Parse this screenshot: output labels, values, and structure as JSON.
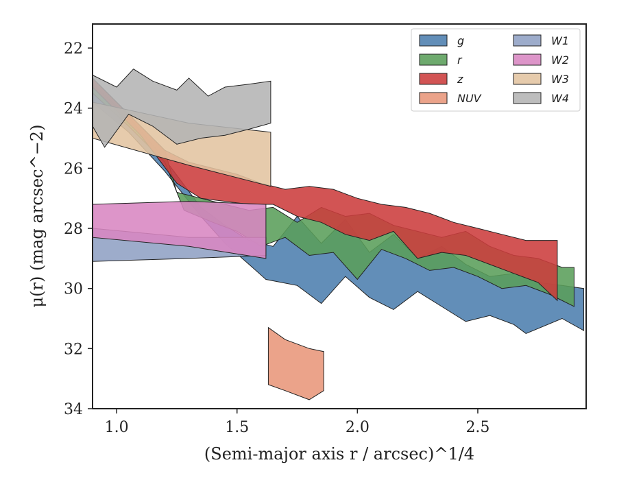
{
  "chart_data": {
    "type": "area",
    "xlabel": "(Semi-major axis r / arcsec)^1/4",
    "ylabel": "μ(r) (mag arcsec^−2)",
    "xlim": [
      0.9,
      2.95
    ],
    "ylim": [
      34,
      21.2
    ],
    "y_inverted": true,
    "x_ticks": [
      "1.0",
      "1.5",
      "2.0",
      "2.5"
    ],
    "y_ticks": [
      "22",
      "24",
      "26",
      "28",
      "30",
      "32",
      "34"
    ],
    "legend_position": "top-right",
    "legend_columns": 2,
    "series": [
      {
        "name": "g",
        "color": "#4c7eae",
        "upper": [
          [
            0.9,
            23.2
          ],
          [
            1.05,
            24.3
          ],
          [
            1.2,
            25.7
          ],
          [
            1.35,
            27.3
          ],
          [
            1.45,
            27.9
          ],
          [
            1.55,
            28.4
          ],
          [
            1.65,
            28.6
          ],
          [
            1.75,
            27.6
          ],
          [
            1.85,
            28.5
          ],
          [
            1.95,
            27.7
          ],
          [
            2.05,
            28.8
          ],
          [
            2.15,
            28.2
          ],
          [
            2.25,
            29.0
          ],
          [
            2.35,
            28.6
          ],
          [
            2.45,
            29.2
          ],
          [
            2.55,
            29.6
          ],
          [
            2.65,
            29.5
          ],
          [
            2.75,
            29.8
          ],
          [
            2.85,
            29.9
          ],
          [
            2.94,
            30.0
          ]
        ],
        "lower": [
          [
            0.9,
            23.8
          ],
          [
            1.05,
            24.8
          ],
          [
            1.2,
            26.1
          ],
          [
            1.35,
            27.6
          ],
          [
            1.45,
            28.5
          ],
          [
            1.55,
            29.2
          ],
          [
            1.62,
            29.7
          ],
          [
            1.75,
            29.9
          ],
          [
            1.85,
            30.5
          ],
          [
            1.95,
            29.6
          ],
          [
            2.05,
            30.3
          ],
          [
            2.15,
            30.7
          ],
          [
            2.25,
            30.1
          ],
          [
            2.35,
            30.6
          ],
          [
            2.45,
            31.1
          ],
          [
            2.55,
            30.9
          ],
          [
            2.65,
            31.2
          ],
          [
            2.7,
            31.5
          ],
          [
            2.85,
            31.0
          ],
          [
            2.94,
            31.4
          ]
        ]
      },
      {
        "name": "r",
        "color": "#5a9e5a",
        "upper": [
          [
            0.9,
            23.0
          ],
          [
            1.05,
            24.2
          ],
          [
            1.2,
            25.4
          ],
          [
            1.25,
            26.8
          ],
          [
            1.35,
            27.0
          ],
          [
            1.45,
            27.2
          ],
          [
            1.55,
            27.4
          ],
          [
            1.65,
            27.3
          ],
          [
            1.75,
            27.8
          ],
          [
            1.85,
            27.3
          ],
          [
            1.95,
            27.6
          ],
          [
            2.05,
            27.5
          ],
          [
            2.15,
            27.9
          ],
          [
            2.25,
            28.1
          ],
          [
            2.35,
            28.3
          ],
          [
            2.45,
            28.1
          ],
          [
            2.55,
            28.6
          ],
          [
            2.65,
            28.9
          ],
          [
            2.75,
            29.0
          ],
          [
            2.85,
            29.3
          ],
          [
            2.9,
            29.3
          ]
        ],
        "lower": [
          [
            0.9,
            23.5
          ],
          [
            1.05,
            24.6
          ],
          [
            1.2,
            25.8
          ],
          [
            1.28,
            27.4
          ],
          [
            1.4,
            27.8
          ],
          [
            1.5,
            28.1
          ],
          [
            1.6,
            28.6
          ],
          [
            1.7,
            28.3
          ],
          [
            1.8,
            28.9
          ],
          [
            1.9,
            28.8
          ],
          [
            2.0,
            29.7
          ],
          [
            2.1,
            28.7
          ],
          [
            2.2,
            29.0
          ],
          [
            2.3,
            29.4
          ],
          [
            2.4,
            29.3
          ],
          [
            2.5,
            29.6
          ],
          [
            2.6,
            30.0
          ],
          [
            2.7,
            29.9
          ],
          [
            2.8,
            30.2
          ],
          [
            2.9,
            30.6
          ]
        ]
      },
      {
        "name": "z",
        "color": "#cc3c3c",
        "upper": [
          [
            0.9,
            23.0
          ],
          [
            1.1,
            24.6
          ],
          [
            1.2,
            25.4
          ],
          [
            1.3,
            25.8
          ],
          [
            1.4,
            26.0
          ],
          [
            1.5,
            26.2
          ],
          [
            1.6,
            26.5
          ],
          [
            1.7,
            26.7
          ],
          [
            1.8,
            26.6
          ],
          [
            1.9,
            26.7
          ],
          [
            2.0,
            27.0
          ],
          [
            2.1,
            27.2
          ],
          [
            2.2,
            27.3
          ],
          [
            2.3,
            27.5
          ],
          [
            2.4,
            27.8
          ],
          [
            2.5,
            28.0
          ],
          [
            2.6,
            28.2
          ],
          [
            2.7,
            28.4
          ],
          [
            2.83,
            28.4
          ]
        ],
        "lower": [
          [
            0.9,
            23.3
          ],
          [
            1.1,
            24.9
          ],
          [
            1.25,
            26.5
          ],
          [
            1.35,
            27.0
          ],
          [
            1.45,
            27.1
          ],
          [
            1.55,
            27.2
          ],
          [
            1.65,
            27.2
          ],
          [
            1.75,
            27.6
          ],
          [
            1.85,
            27.8
          ],
          [
            1.95,
            28.2
          ],
          [
            2.05,
            28.4
          ],
          [
            2.15,
            28.1
          ],
          [
            2.25,
            29.0
          ],
          [
            2.35,
            28.8
          ],
          [
            2.45,
            28.9
          ],
          [
            2.55,
            29.2
          ],
          [
            2.65,
            29.5
          ],
          [
            2.75,
            29.8
          ],
          [
            2.83,
            30.4
          ]
        ]
      },
      {
        "name": "NUV",
        "color": "#e8967a",
        "upper": [
          [
            1.63,
            31.3
          ],
          [
            1.7,
            31.7
          ],
          [
            1.8,
            32.0
          ],
          [
            1.86,
            32.1
          ]
        ],
        "lower": [
          [
            1.63,
            33.2
          ],
          [
            1.7,
            33.4
          ],
          [
            1.8,
            33.7
          ],
          [
            1.86,
            33.4
          ]
        ]
      },
      {
        "name": "W1",
        "color": "#8fa0c4",
        "upper": [
          [
            0.9,
            28.0
          ],
          [
            1.3,
            28.3
          ],
          [
            1.62,
            28.3
          ]
        ],
        "lower": [
          [
            0.9,
            29.1
          ],
          [
            1.3,
            29.0
          ],
          [
            1.62,
            28.9
          ]
        ]
      },
      {
        "name": "W2",
        "color": "#d886c2",
        "upper": [
          [
            0.9,
            27.2
          ],
          [
            1.3,
            27.1
          ],
          [
            1.62,
            27.2
          ]
        ],
        "lower": [
          [
            0.9,
            28.3
          ],
          [
            1.3,
            28.6
          ],
          [
            1.62,
            29.0
          ]
        ]
      },
      {
        "name": "W3",
        "color": "#e2c4a0",
        "upper": [
          [
            0.9,
            23.8
          ],
          [
            1.3,
            24.5
          ],
          [
            1.64,
            24.8
          ]
        ],
        "lower": [
          [
            0.9,
            25.0
          ],
          [
            1.3,
            25.9
          ],
          [
            1.64,
            26.6
          ]
        ]
      },
      {
        "name": "W4",
        "color": "#b4b4b4",
        "upper": [
          [
            0.9,
            22.9
          ],
          [
            1.0,
            23.3
          ],
          [
            1.07,
            22.7
          ],
          [
            1.15,
            23.1
          ],
          [
            1.25,
            23.4
          ],
          [
            1.3,
            23.0
          ],
          [
            1.38,
            23.6
          ],
          [
            1.45,
            23.3
          ],
          [
            1.55,
            23.2
          ],
          [
            1.64,
            23.1
          ]
        ],
        "lower": [
          [
            0.9,
            24.6
          ],
          [
            0.95,
            25.3
          ],
          [
            1.05,
            24.2
          ],
          [
            1.15,
            24.6
          ],
          [
            1.25,
            25.2
          ],
          [
            1.35,
            25.0
          ],
          [
            1.45,
            24.9
          ],
          [
            1.55,
            24.7
          ],
          [
            1.64,
            24.5
          ]
        ]
      }
    ]
  }
}
